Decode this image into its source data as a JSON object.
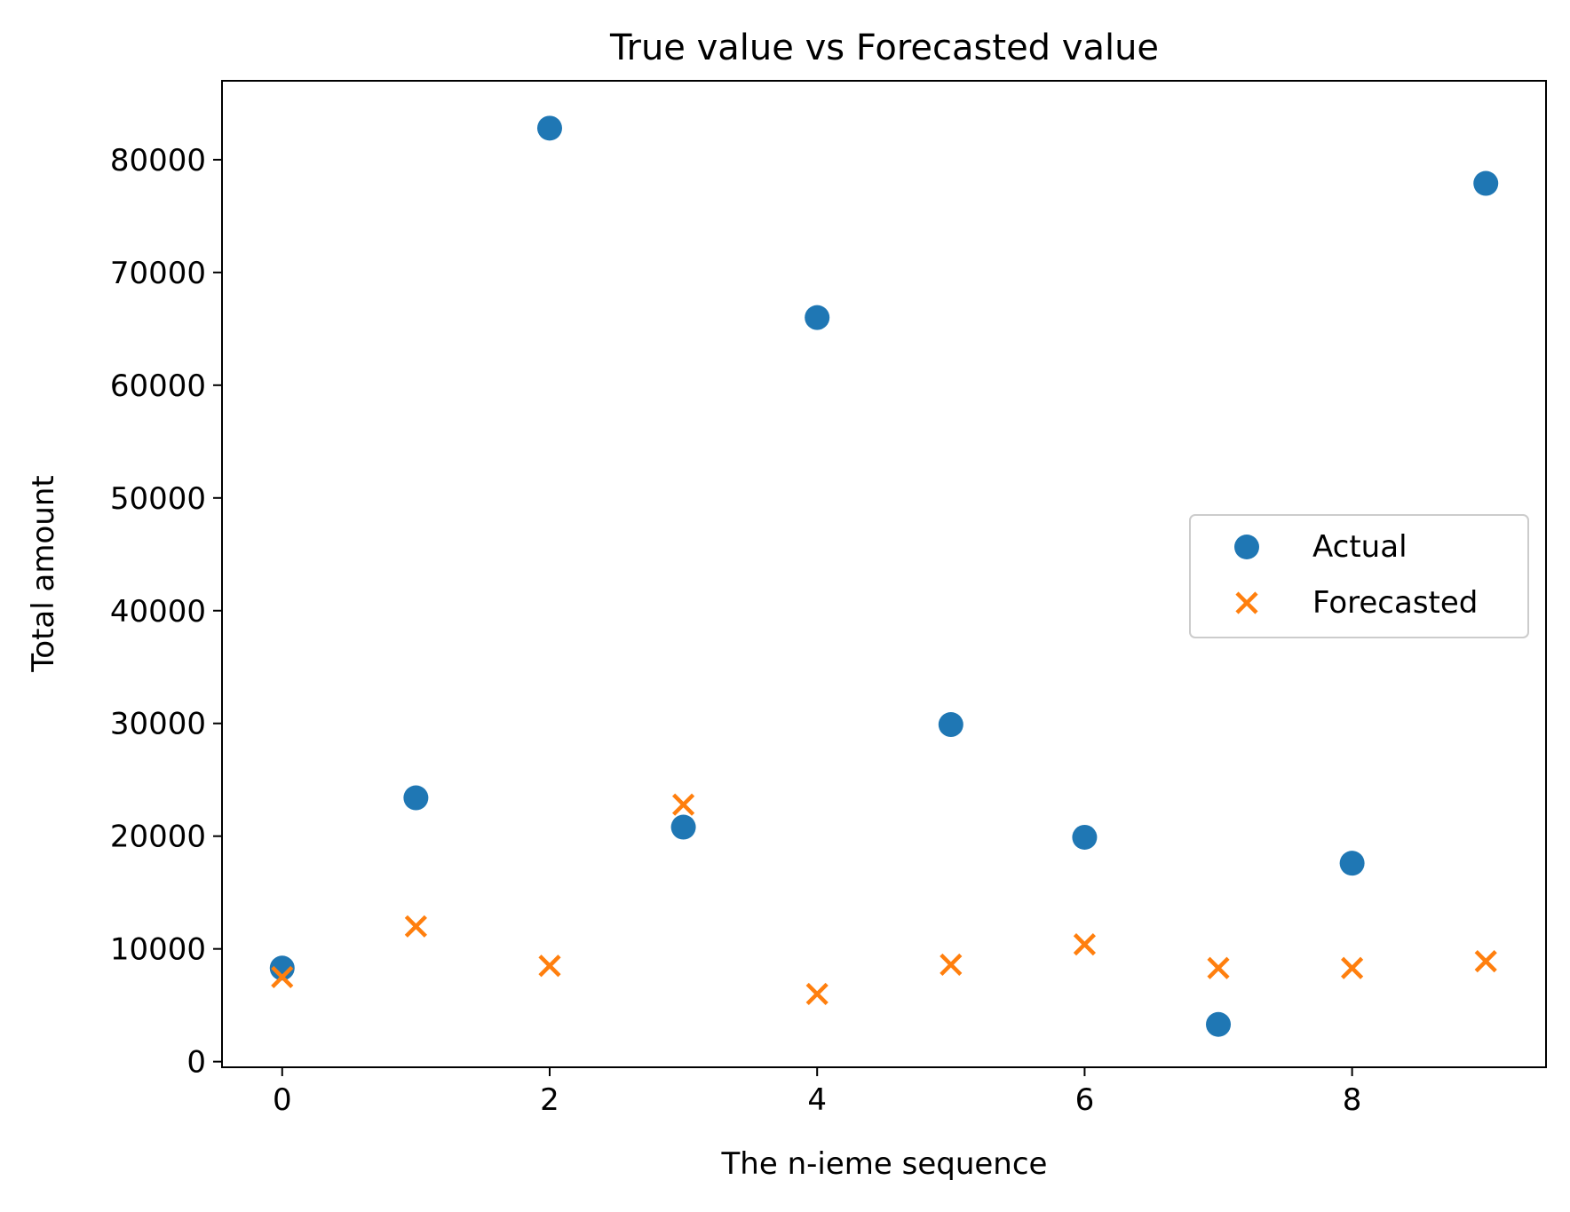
{
  "chart_data": {
    "type": "scatter",
    "title": "True value vs Forecasted value",
    "xlabel": "The n-ieme sequence",
    "ylabel": "Total amount",
    "xlim": [
      -0.45,
      9.45
    ],
    "ylim": [
      -500,
      87000
    ],
    "xticks": [
      0,
      2,
      4,
      6,
      8
    ],
    "yticks": [
      0,
      10000,
      20000,
      30000,
      40000,
      50000,
      60000,
      70000,
      80000
    ],
    "grid": false,
    "legend_position": "center-right",
    "series": [
      {
        "name": "Actual",
        "marker": "circle",
        "color": "#1f77b4",
        "x": [
          0,
          1,
          2,
          3,
          4,
          5,
          6,
          7,
          8,
          9
        ],
        "y": [
          8300,
          23400,
          82800,
          20800,
          66000,
          29900,
          19900,
          3300,
          17600,
          77900
        ]
      },
      {
        "name": "Forecasted",
        "marker": "x",
        "color": "#ff7f0e",
        "x": [
          0,
          1,
          2,
          3,
          4,
          5,
          6,
          7,
          8,
          9
        ],
        "y": [
          7500,
          12000,
          8500,
          22800,
          6000,
          8600,
          10400,
          8300,
          8300,
          8900
        ]
      }
    ]
  }
}
